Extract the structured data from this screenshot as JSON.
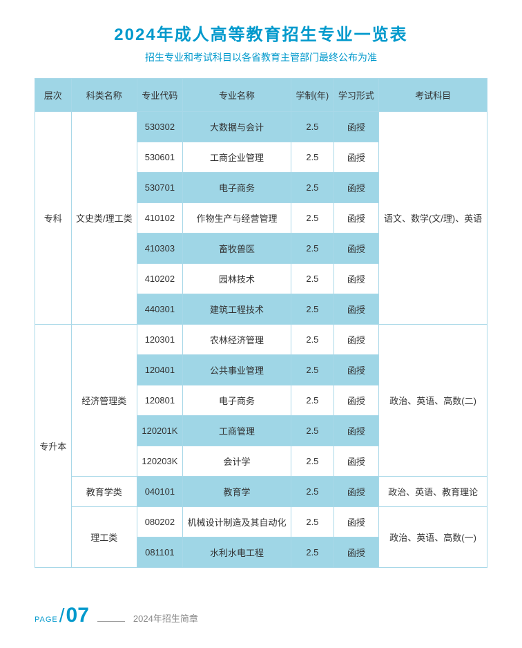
{
  "title": "2024年成人高等教育招生专业一览表",
  "subtitle": "招生专业和考试科目以各省教育主管部门最终公布为准",
  "columns": [
    "层次",
    "科类名称",
    "专业代码",
    "专业名称",
    "学制(年)",
    "学习形式",
    "考试科目"
  ],
  "levels": [
    {
      "level": "专科",
      "categories": [
        {
          "name": "文史类/理工类",
          "exam": "语文、数学(文/理)、英语",
          "rows": [
            {
              "code": "530302",
              "major": "大数据与会计",
              "years": "2.5",
              "mode": "函授"
            },
            {
              "code": "530601",
              "major": "工商企业管理",
              "years": "2.5",
              "mode": "函授"
            },
            {
              "code": "530701",
              "major": "电子商务",
              "years": "2.5",
              "mode": "函授"
            },
            {
              "code": "410102",
              "major": "作物生产与经营管理",
              "years": "2.5",
              "mode": "函授"
            },
            {
              "code": "410303",
              "major": "畜牧兽医",
              "years": "2.5",
              "mode": "函授"
            },
            {
              "code": "410202",
              "major": "园林技术",
              "years": "2.5",
              "mode": "函授"
            },
            {
              "code": "440301",
              "major": "建筑工程技术",
              "years": "2.5",
              "mode": "函授"
            }
          ]
        }
      ]
    },
    {
      "level": "专升本",
      "categories": [
        {
          "name": "经济管理类",
          "exam": "政治、英语、高数(二)",
          "rows": [
            {
              "code": "120301",
              "major": "农林经济管理",
              "years": "2.5",
              "mode": "函授"
            },
            {
              "code": "120401",
              "major": "公共事业管理",
              "years": "2.5",
              "mode": "函授"
            },
            {
              "code": "120801",
              "major": "电子商务",
              "years": "2.5",
              "mode": "函授"
            },
            {
              "code": "120201K",
              "major": "工商管理",
              "years": "2.5",
              "mode": "函授"
            },
            {
              "code": "120203K",
              "major": "会计学",
              "years": "2.5",
              "mode": "函授"
            }
          ]
        },
        {
          "name": "教育学类",
          "exam": "政治、英语、教育理论",
          "rows": [
            {
              "code": "040101",
              "major": "教育学",
              "years": "2.5",
              "mode": "函授"
            }
          ]
        },
        {
          "name": "理工类",
          "exam": "政治、英语、高数(一)",
          "rows": [
            {
              "code": "080202",
              "major": "机械设计制造及其自动化",
              "years": "2.5",
              "mode": "函授"
            },
            {
              "code": "081101",
              "major": "水利水电工程",
              "years": "2.5",
              "mode": "函授"
            }
          ]
        }
      ]
    }
  ],
  "footer": {
    "page_label": "PAGE",
    "page_num": "07",
    "text": "2024年招生简章"
  },
  "colors": {
    "primary": "#0099cc",
    "header_bg": "#9fd6e6",
    "border": "#a8d8e8"
  }
}
